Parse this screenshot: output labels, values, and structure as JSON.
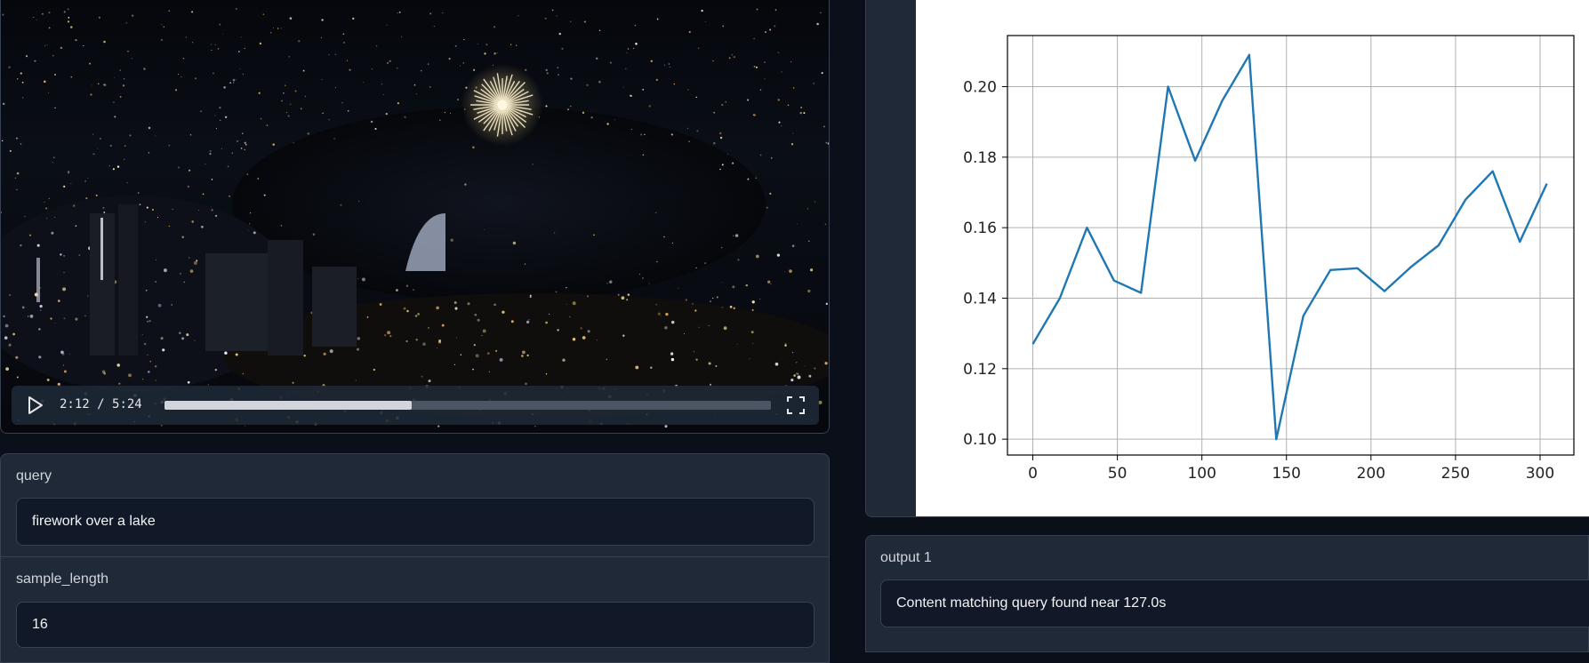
{
  "video": {
    "current_time": "2:12",
    "duration": "5:24",
    "progress_fraction": 0.407
  },
  "query": {
    "label": "query",
    "value": "firework over a lake"
  },
  "sample_length": {
    "label": "sample_length",
    "value": "16"
  },
  "output1": {
    "label": "output 1",
    "value": "Content matching query found near 127.0s"
  },
  "colors": {
    "line": "#1f77b4",
    "panel": "#1f2937",
    "border": "#374151",
    "field": "#111827"
  },
  "icons": [
    "play-icon",
    "fullscreen-icon"
  ],
  "chart_data": {
    "type": "line",
    "title": "",
    "xlabel": "",
    "ylabel": "",
    "x": [
      0,
      16,
      32,
      48,
      64,
      80,
      96,
      112,
      128,
      144,
      160,
      176,
      192,
      208,
      224,
      240,
      256,
      272,
      288,
      304
    ],
    "series": [
      {
        "values": [
          0.127,
          0.14,
          0.16,
          0.145,
          0.1415,
          0.2,
          0.179,
          0.196,
          0.209,
          0.1,
          0.135,
          0.148,
          0.1485,
          0.142,
          0.149,
          0.155,
          0.168,
          0.176,
          0.156,
          0.1725
        ]
      }
    ],
    "xlim": [
      -15,
      320
    ],
    "ylim": [
      0.0955,
      0.2145
    ],
    "xticks": [
      "0",
      "50",
      "100",
      "150",
      "200",
      "250",
      "300"
    ],
    "yticks": [
      "0.10",
      "0.12",
      "0.14",
      "0.16",
      "0.18",
      "0.20"
    ],
    "grid": true
  }
}
